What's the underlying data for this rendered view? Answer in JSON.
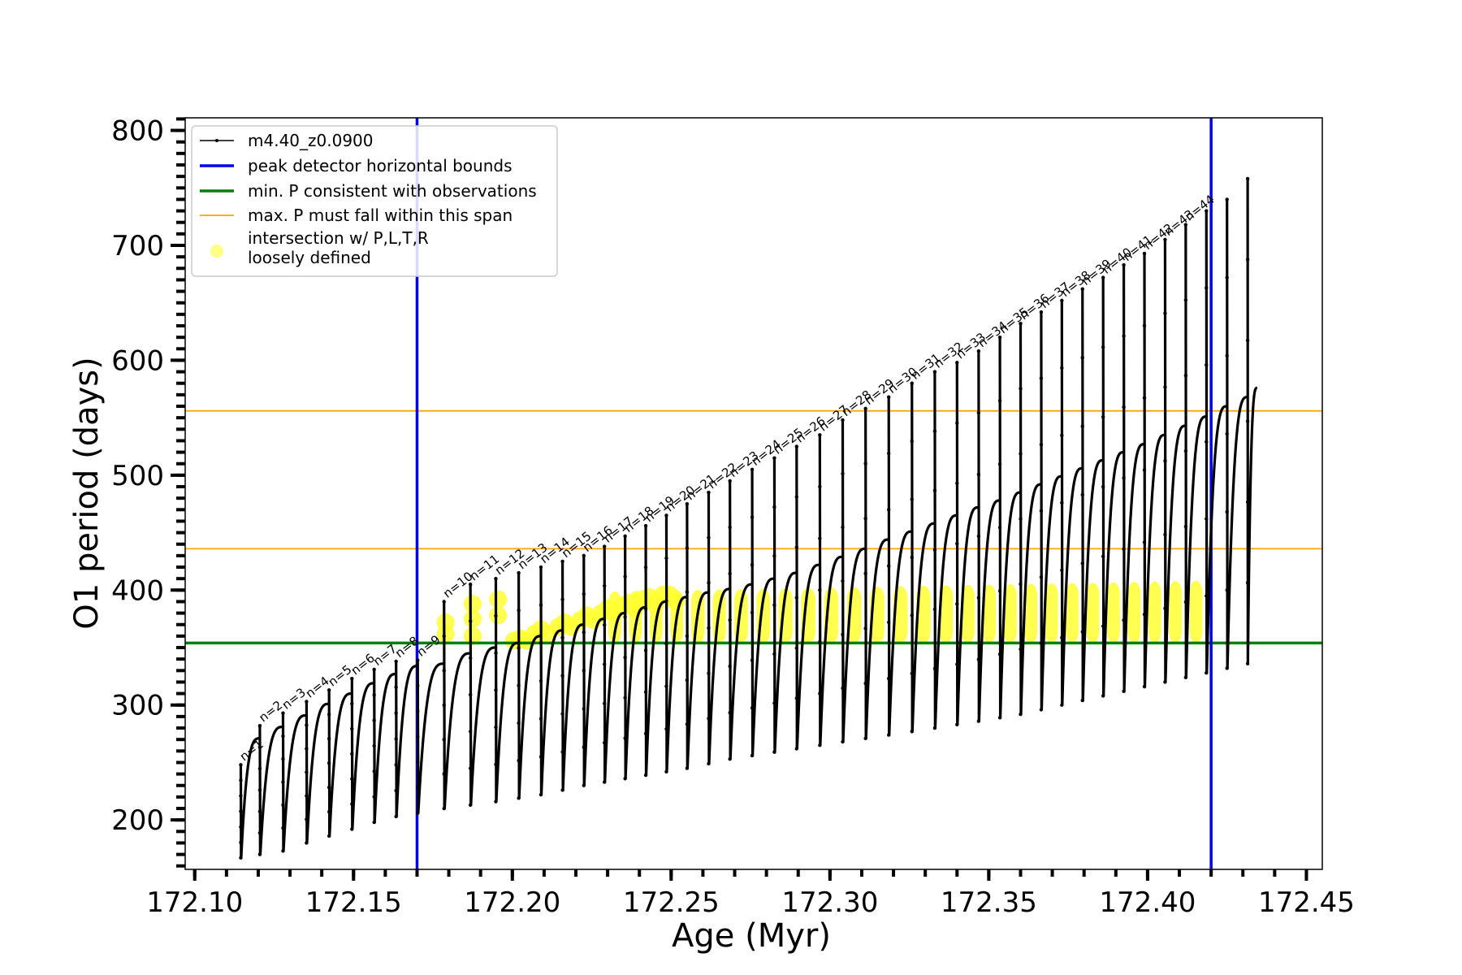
{
  "chart_data": {
    "type": "line",
    "xlabel": "Age (Myr)",
    "ylabel": "O1 period (days)",
    "xlim": [
      172.097,
      172.455
    ],
    "ylim": [
      157,
      811
    ],
    "x_ticks": [
      172.1,
      172.15,
      172.2,
      172.25,
      172.3,
      172.35,
      172.4,
      172.45
    ],
    "x_tick_labels": [
      "172.10",
      "172.15",
      "172.20",
      "172.25",
      "172.30",
      "172.35",
      "172.40",
      "172.45"
    ],
    "y_ticks": [
      200,
      300,
      400,
      500,
      600,
      700,
      800
    ],
    "y_tick_labels": [
      "200",
      "300",
      "400",
      "500",
      "600",
      "700",
      "800"
    ],
    "grid": false,
    "legend_position": "top-left",
    "legend": [
      {
        "label": "m4.40_z0.0900",
        "marker": "line-dot",
        "color": "#000000"
      },
      {
        "label": "peak detector horizontal bounds",
        "marker": "line",
        "color": "#0000ee"
      },
      {
        "label": "min. P consistent with observations",
        "marker": "line",
        "color": "#008000"
      },
      {
        "label": "max. P must fall within this span",
        "marker": "line",
        "color": "#ffa500"
      },
      {
        "label_lines": [
          "intersection w/ P,L,T,R",
          "loosely defined"
        ],
        "marker": "circle",
        "color": "#ffff66"
      }
    ],
    "vertical_lines": [
      {
        "x": 172.17,
        "color": "#0000ee",
        "legend": "peak detector horizontal bounds"
      },
      {
        "x": 172.42,
        "color": "#0000ee",
        "legend": "peak detector horizontal bounds"
      }
    ],
    "horizontal_lines": [
      {
        "y": 354,
        "color": "#008000",
        "legend": "min. P consistent with observations"
      },
      {
        "y": 436,
        "color": "#ffa500",
        "legend": "max. P must fall within this span"
      },
      {
        "y": 556,
        "color": "#ffa500",
        "legend": "max. P must fall within this span"
      }
    ],
    "series_name": "m4.40_z0.0900",
    "series_color": "#000000",
    "highlight_color": "#ffff33",
    "pulse_cycles": [
      {
        "n": "n=1",
        "start": 172.1145,
        "end": 172.1205,
        "min": 167,
        "top": 271,
        "spike": 248
      },
      {
        "n": "n=2",
        "start": 172.1205,
        "end": 172.1278,
        "min": 170,
        "top": 281,
        "spike": 282
      },
      {
        "n": "n=3",
        "start": 172.1278,
        "end": 172.1352,
        "min": 173,
        "top": 291,
        "spike": 293
      },
      {
        "n": "n=4",
        "start": 172.1352,
        "end": 172.1423,
        "min": 180,
        "top": 301,
        "spike": 303
      },
      {
        "n": "n=5",
        "start": 172.1423,
        "end": 172.1495,
        "min": 186,
        "top": 310,
        "spike": 313
      },
      {
        "n": "n=6",
        "start": 172.1495,
        "end": 172.1565,
        "min": 192,
        "top": 319,
        "spike": 323
      },
      {
        "n": "n=7",
        "start": 172.1565,
        "end": 172.1634,
        "min": 198,
        "top": 327,
        "spike": 331
      },
      {
        "n": "n=8",
        "start": 172.1634,
        "end": 172.1702,
        "min": 203,
        "top": 334,
        "spike": 338
      },
      {
        "n": "n=9",
        "start": 172.1702,
        "end": 172.1785,
        "min": 206,
        "top": 336,
        "spike": 339
      },
      {
        "n": "n=10",
        "start": 172.1785,
        "end": 172.1868,
        "min": 210,
        "top": 345,
        "spike": 390
      },
      {
        "n": "n=11",
        "start": 172.1868,
        "end": 172.1948,
        "min": 213,
        "top": 350,
        "spike": 405
      },
      {
        "n": "n=12",
        "start": 172.1948,
        "end": 172.202,
        "min": 216,
        "top": 354,
        "spike": 410
      },
      {
        "n": "n=13",
        "start": 172.202,
        "end": 172.209,
        "min": 219,
        "top": 360,
        "spike": 415
      },
      {
        "n": "n=14",
        "start": 172.209,
        "end": 172.2158,
        "min": 222,
        "top": 365,
        "spike": 420
      },
      {
        "n": "n=15",
        "start": 172.2158,
        "end": 172.2225,
        "min": 226,
        "top": 370,
        "spike": 425
      },
      {
        "n": "n=16",
        "start": 172.2225,
        "end": 172.229,
        "min": 230,
        "top": 375,
        "spike": 430
      },
      {
        "n": "n=17",
        "start": 172.229,
        "end": 172.2355,
        "min": 233,
        "top": 380,
        "spike": 438
      },
      {
        "n": "n=18",
        "start": 172.2355,
        "end": 172.242,
        "min": 236,
        "top": 385,
        "spike": 447
      },
      {
        "n": "n=19",
        "start": 172.242,
        "end": 172.2485,
        "min": 239,
        "top": 390,
        "spike": 456
      },
      {
        "n": "n=20",
        "start": 172.2485,
        "end": 172.255,
        "min": 242,
        "top": 394,
        "spike": 465
      },
      {
        "n": "n=21",
        "start": 172.255,
        "end": 172.2618,
        "min": 245,
        "top": 398,
        "spike": 475
      },
      {
        "n": "n=22",
        "start": 172.2618,
        "end": 172.2685,
        "min": 249,
        "top": 401,
        "spike": 485
      },
      {
        "n": "n=23",
        "start": 172.2685,
        "end": 172.2755,
        "min": 253,
        "top": 405,
        "spike": 495
      },
      {
        "n": "n=24",
        "start": 172.2755,
        "end": 172.2825,
        "min": 256,
        "top": 410,
        "spike": 505
      },
      {
        "n": "n=25",
        "start": 172.2825,
        "end": 172.2895,
        "min": 259,
        "top": 415,
        "spike": 515
      },
      {
        "n": "n=26",
        "start": 172.2895,
        "end": 172.2968,
        "min": 262,
        "top": 422,
        "spike": 525
      },
      {
        "n": "n=27",
        "start": 172.2968,
        "end": 172.304,
        "min": 265,
        "top": 429,
        "spike": 535
      },
      {
        "n": "n=28",
        "start": 172.304,
        "end": 172.3112,
        "min": 268,
        "top": 436,
        "spike": 548
      },
      {
        "n": "n=29",
        "start": 172.3112,
        "end": 172.3185,
        "min": 271,
        "top": 444,
        "spike": 558
      },
      {
        "n": "n=30",
        "start": 172.3185,
        "end": 172.3258,
        "min": 274,
        "top": 451,
        "spike": 568
      },
      {
        "n": "n=31",
        "start": 172.3258,
        "end": 172.333,
        "min": 277,
        "top": 458,
        "spike": 580
      },
      {
        "n": "n=32",
        "start": 172.333,
        "end": 172.34,
        "min": 280,
        "top": 465,
        "spike": 590
      },
      {
        "n": "n=33",
        "start": 172.34,
        "end": 172.3468,
        "min": 283,
        "top": 472,
        "spike": 598
      },
      {
        "n": "n=34",
        "start": 172.3468,
        "end": 172.3535,
        "min": 286,
        "top": 478,
        "spike": 608
      },
      {
        "n": "n=35",
        "start": 172.3535,
        "end": 172.36,
        "min": 289,
        "top": 485,
        "spike": 620
      },
      {
        "n": "n=36",
        "start": 172.36,
        "end": 172.3665,
        "min": 292,
        "top": 492,
        "spike": 632
      },
      {
        "n": "n=37",
        "start": 172.3665,
        "end": 172.373,
        "min": 296,
        "top": 499,
        "spike": 642
      },
      {
        "n": "n=38",
        "start": 172.373,
        "end": 172.3795,
        "min": 300,
        "top": 506,
        "spike": 652
      },
      {
        "n": "n=39",
        "start": 172.3795,
        "end": 172.386,
        "min": 304,
        "top": 513,
        "spike": 662
      },
      {
        "n": "n=40",
        "start": 172.386,
        "end": 172.3925,
        "min": 308,
        "top": 520,
        "spike": 672
      },
      {
        "n": "n=41",
        "start": 172.3925,
        "end": 172.399,
        "min": 312,
        "top": 527,
        "spike": 683
      },
      {
        "n": "n=42",
        "start": 172.399,
        "end": 172.4055,
        "min": 316,
        "top": 535,
        "spike": 693
      },
      {
        "n": "n=43",
        "start": 172.4055,
        "end": 172.412,
        "min": 320,
        "top": 543,
        "spike": 705
      },
      {
        "n": "n=44",
        "start": 172.412,
        "end": 172.4185,
        "min": 324,
        "top": 551,
        "spike": 718
      },
      {
        "n": "",
        "start": 172.4185,
        "end": 172.425,
        "min": 328,
        "top": 560,
        "spike": 730
      },
      {
        "n": "",
        "start": 172.425,
        "end": 172.4315,
        "min": 332,
        "top": 568,
        "spike": 740
      },
      {
        "n": "",
        "start": 172.4315,
        "end": 172.4345,
        "min": 336,
        "top": 576,
        "spike": 758
      }
    ],
    "intersection_points": [
      {
        "x": 172.179,
        "y": 372
      },
      {
        "x": 172.179,
        "y": 362
      },
      {
        "x": 172.1875,
        "y": 388
      },
      {
        "x": 172.1875,
        "y": 375
      },
      {
        "x": 172.1875,
        "y": 360
      },
      {
        "x": 172.1955,
        "y": 392
      },
      {
        "x": 172.1955,
        "y": 378
      },
      {
        "x": 172.2005,
        "y": 356
      },
      {
        "x": 172.2025,
        "y": 358
      },
      {
        "x": 172.2045,
        "y": 356
      },
      {
        "x": 172.207,
        "y": 362
      },
      {
        "x": 172.209,
        "y": 366
      },
      {
        "x": 172.211,
        "y": 362
      },
      {
        "x": 172.2145,
        "y": 368
      },
      {
        "x": 172.2165,
        "y": 372
      },
      {
        "x": 172.2185,
        "y": 368
      },
      {
        "x": 172.2215,
        "y": 374
      },
      {
        "x": 172.2235,
        "y": 378
      },
      {
        "x": 172.2255,
        "y": 374
      },
      {
        "x": 172.228,
        "y": 380
      },
      {
        "x": 172.23,
        "y": 384
      },
      {
        "x": 172.232,
        "y": 380
      },
      {
        "x": 172.2345,
        "y": 386
      },
      {
        "x": 172.2365,
        "y": 389
      },
      {
        "x": 172.2385,
        "y": 384
      },
      {
        "x": 172.241,
        "y": 392
      },
      {
        "x": 172.243,
        "y": 394
      },
      {
        "x": 172.245,
        "y": 388
      },
      {
        "x": 172.2475,
        "y": 396
      },
      {
        "x": 172.2495,
        "y": 396
      },
      {
        "x": 172.2515,
        "y": 390
      }
    ],
    "cycle_label_text": [
      "n=1",
      "n=2",
      "n=3",
      "n=4",
      "n=5",
      "n=6",
      "n=7",
      "n=8",
      "n=9",
      "n=10",
      "n=11",
      "n=12",
      "n=13",
      "n=14",
      "n=15",
      "n=16",
      "n=17",
      "n=18",
      "n=19",
      "n=20",
      "n=21",
      "n=22",
      "n=23",
      "n=24",
      "n=25",
      "n=26",
      "n=27",
      "n=28",
      "n=29",
      "n=30",
      "n=31",
      "n=32",
      "n=33",
      "n=34",
      "n=35",
      "n=36",
      "n=37",
      "n=38",
      "n=39",
      "n=40",
      "n=41",
      "n=42",
      "n=43",
      "n=44"
    ]
  }
}
